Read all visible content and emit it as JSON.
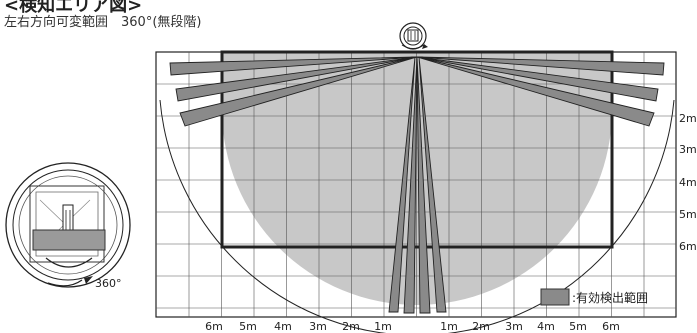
{
  "header": {
    "title": "<検知エリア図>",
    "subtitle": "左右方向可変範囲　360°(無段階)"
  },
  "diagram": {
    "x_labels": [
      "6m",
      "5m",
      "4m",
      "3m",
      "2m",
      "1m",
      "1m",
      "2m",
      "3m",
      "4m",
      "5m",
      "6m"
    ],
    "y_labels": [
      "2m",
      "3m",
      "4m",
      "5m",
      "6m"
    ],
    "rotation_label": "360°",
    "legend_label": ":有効検出範囲",
    "colors": {
      "detection_area": "#c8c8c8",
      "beam_fill": "#8a8a8a",
      "frame": "#222222",
      "grid": "#555555"
    }
  }
}
